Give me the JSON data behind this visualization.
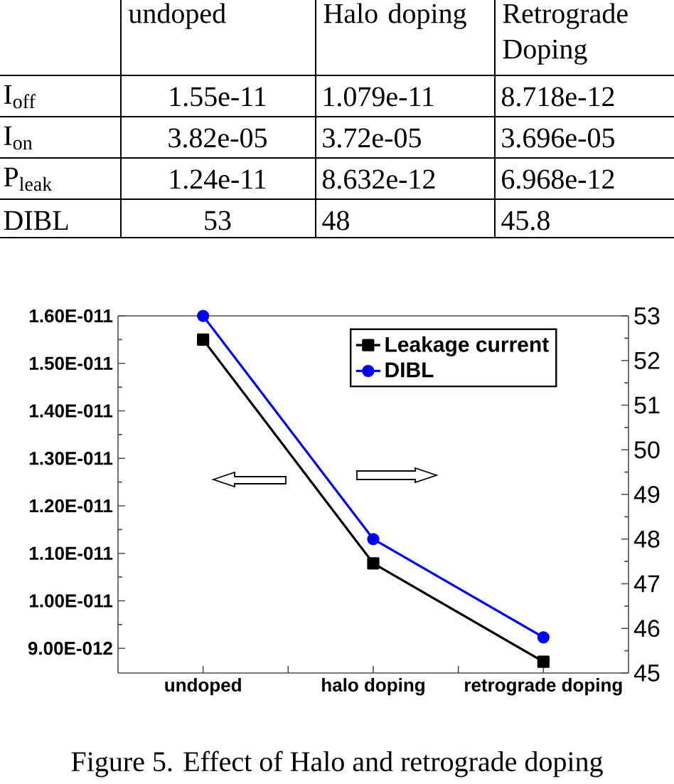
{
  "chart_data": [
    {
      "type": "other",
      "categories": [
        "undoped",
        "Halo doping",
        "Retrograde Doping"
      ],
      "annotations": [
        "I$_{off}$",
        "1.55e-11",
        "1.079e-11",
        "8.718e-12",
        "I$_{on}$",
        "3.82e-05",
        "3.72e-05",
        "3.696e-05",
        "P$_{leak}$",
        "1.24e-11",
        "8.632e-12",
        "6.968e-12",
        "DIBL",
        "53",
        "48",
        "45.8"
      ]
    },
    {
      "type": "line",
      "categories": [
        "undoped",
        "halo doping",
        "retrograde doping"
      ],
      "series": [
        {
          "name": "Leakage current",
          "color": "#000000",
          "marker": "square",
          "values": [
            1.55e-11,
            1.079e-11,
            8.718e-12
          ]
        },
        {
          "name": "DIBL",
          "color": "#0000ff",
          "marker": "circle",
          "axis": "y2",
          "values": [
            53,
            48,
            45.8
          ]
        }
      ],
      "ylim": [
        8.48e-12,
        1.6e-11
      ],
      "yticks": [
        {
          "value": 9e-12,
          "label": "9.00E-012"
        },
        {
          "value": 1e-11,
          "label": "1.00E-011"
        },
        {
          "value": 1.1e-11,
          "label": "1.10E-011"
        },
        {
          "value": 1.2e-11,
          "label": "1.20E-011"
        },
        {
          "value": 1.3e-11,
          "label": "1.30E-011"
        },
        {
          "value": 1.4e-11,
          "label": "1.40E-011"
        },
        {
          "value": 1.5e-11,
          "label": "1.50E-011"
        },
        {
          "value": 1.6e-11,
          "label": "1.60E-011"
        }
      ],
      "y2lim": [
        45,
        53
      ],
      "y2ticks": [
        45,
        46,
        47,
        48,
        49,
        50,
        51,
        52,
        53
      ],
      "legend": "top right",
      "annotations": [
        "Figure 5. Effect of Halo and retrograde doping"
      ]
    }
  ]
}
